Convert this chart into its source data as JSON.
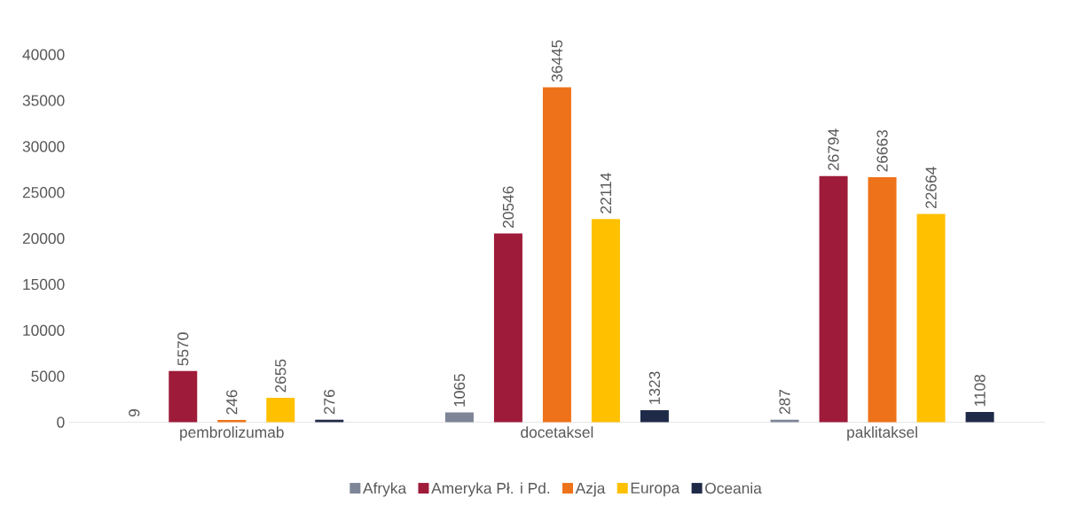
{
  "chart_data": {
    "type": "bar",
    "categories": [
      "pembrolizumab",
      "docetaksel",
      "paklitaksel"
    ],
    "series": [
      {
        "name": "Afryka",
        "color": "#7e8597",
        "values": [
          9,
          1065,
          287
        ]
      },
      {
        "name": "Ameryka Pł. i Pd.",
        "color": "#9e1b3a",
        "values": [
          5570,
          20546,
          26794
        ]
      },
      {
        "name": "Azja",
        "color": "#ee7219",
        "values": [
          246,
          36445,
          26663
        ]
      },
      {
        "name": "Europa",
        "color": "#ffc000",
        "values": [
          2655,
          22114,
          22664
        ]
      },
      {
        "name": "Oceania",
        "color": "#1f2a48",
        "values": [
          276,
          1323,
          1108
        ]
      }
    ],
    "ylim": [
      0,
      40000
    ],
    "yticks": [
      0,
      5000,
      10000,
      15000,
      20000,
      25000,
      30000,
      35000,
      40000
    ],
    "data_labels": true,
    "legend": "bottom"
  }
}
